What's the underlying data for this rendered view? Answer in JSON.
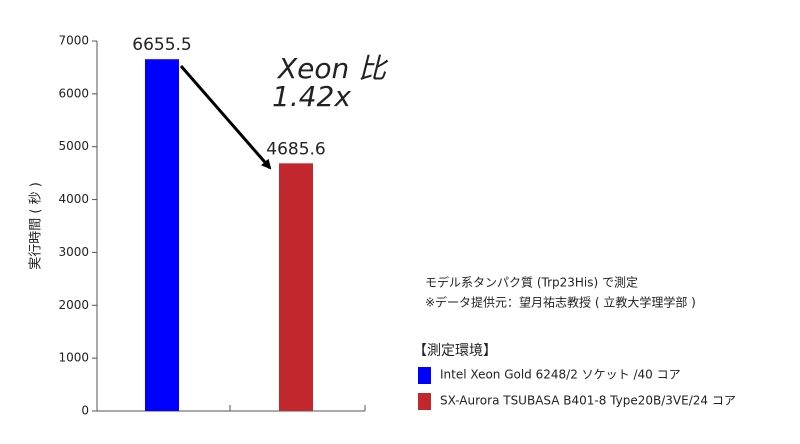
{
  "chart_data": {
    "type": "bar",
    "y_label": "実行時間 ( 秒 )",
    "categories": [
      null,
      null
    ],
    "series": [
      {
        "name": "Intel Xeon Gold 6248/2 ソケット /40 コア",
        "color": "#0000ff",
        "values": [
          6655.5,
          null
        ]
      },
      {
        "name": "SX-Aurora TSUBASA B401-8 Type20B/3VE/24 コア",
        "color": "#c1272d",
        "values": [
          null,
          4685.6
        ]
      }
    ],
    "legend_title": "【測定環境】",
    "annotation": [
      "Xeon 比",
      "1.42x"
    ],
    "notes": [
      "モデル系タンパク質 (Trp23His) で測定",
      "※データ提供元：望月祐志教授 ( 立教大学理学部 )"
    ],
    "ylim": [
      0,
      7000
    ],
    "yticks": [
      0,
      1000,
      2000,
      3000,
      4000,
      5000,
      6000,
      7000
    ],
    "grid": false,
    "legend": "right"
  }
}
